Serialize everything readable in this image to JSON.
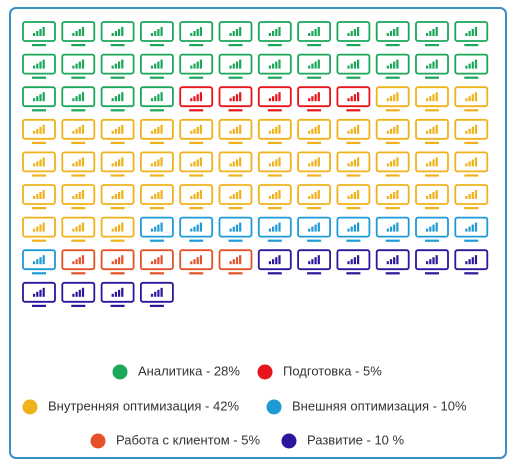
{
  "chart_data": {
    "type": "waffle",
    "series": [
      {
        "name": "Аналитика - 28%",
        "color": "#1aa75a",
        "value": 28
      },
      {
        "name": "Подготовка - 5%",
        "color": "#e8141b",
        "value": 5
      },
      {
        "name": "Внутренняя оптимизация - 42%",
        "color": "#efb21b",
        "value": 42
      },
      {
        "name": "Внешняя оптимизация - 10%",
        "color": "#1e9ad6",
        "value": 10
      },
      {
        "name": "Работа с клиентом - 5%",
        "color": "#e4522a",
        "value": 5
      },
      {
        "name": "Развитие - 10 %",
        "color": "#2b169c",
        "value": 10
      }
    ]
  }
}
